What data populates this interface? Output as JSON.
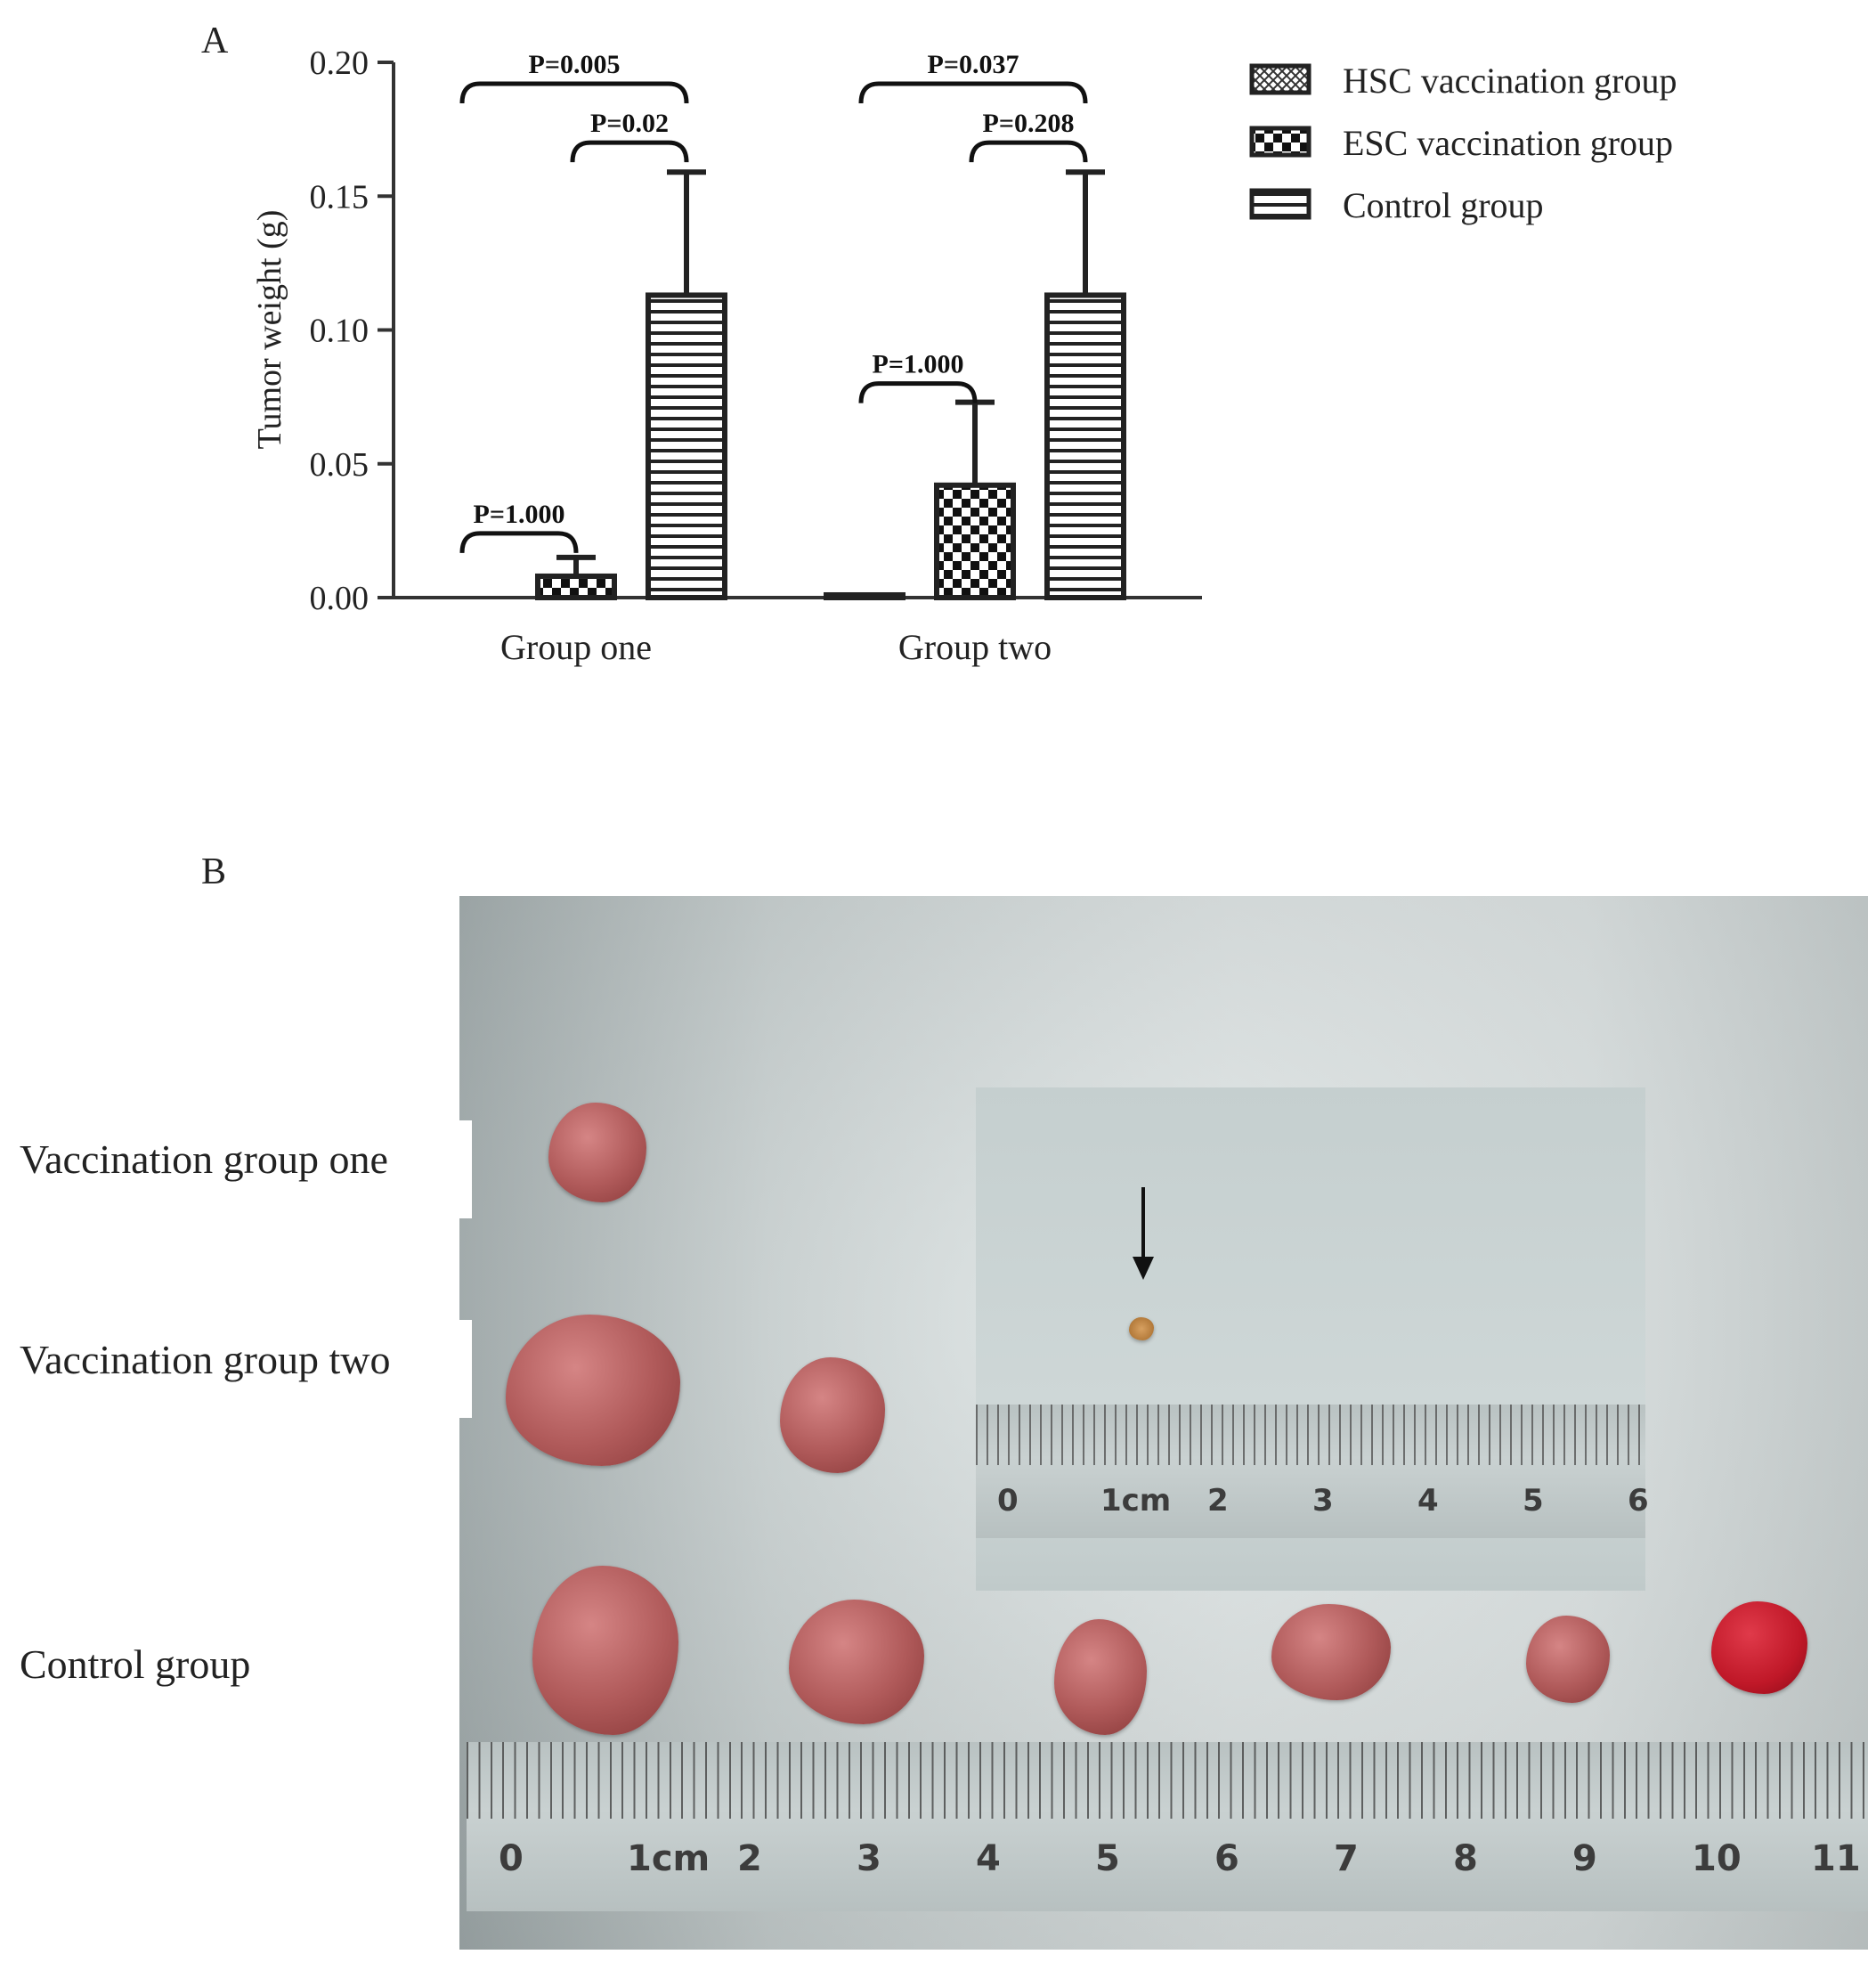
{
  "panel_a_letter": "A",
  "panel_b_letter": "B",
  "chart_data": {
    "type": "bar",
    "title": "",
    "xlabel": "",
    "ylabel": "Tumor weight (g)",
    "ylim": [
      0,
      0.2
    ],
    "yticks": [
      "0.00",
      "0.05",
      "0.10",
      "0.15",
      "0.20"
    ],
    "categories": [
      "Group one",
      "Group two"
    ],
    "series": [
      {
        "name": "HSC vaccination group",
        "values": [
          0.0,
          0.001
        ],
        "errors": [
          0.0,
          0.0
        ]
      },
      {
        "name": "ESC vaccination group",
        "values": [
          0.008,
          0.042
        ],
        "errors": [
          0.007,
          0.031
        ]
      },
      {
        "name": "Control group",
        "values": [
          0.113,
          0.113
        ],
        "errors": [
          0.046,
          0.046
        ]
      }
    ],
    "annotations": [
      {
        "group": 0,
        "from": 0,
        "to": 2,
        "text": "P=0.005",
        "y": 0.192
      },
      {
        "group": 0,
        "from": 1,
        "to": 2,
        "text": "P=0.02",
        "y": 0.17
      },
      {
        "group": 0,
        "from": 0,
        "to": 1,
        "text": "P=1.000",
        "y": 0.024
      },
      {
        "group": 1,
        "from": 0,
        "to": 2,
        "text": "P=0.037",
        "y": 0.192
      },
      {
        "group": 1,
        "from": 1,
        "to": 2,
        "text": "P=0.208",
        "y": 0.17
      },
      {
        "group": 1,
        "from": 0,
        "to": 1,
        "text": "P=1.000",
        "y": 0.08
      }
    ],
    "legend_position": "right",
    "grid": false
  },
  "photo": {
    "row_labels": [
      "Vaccination group one",
      "Vaccination group two",
      "Control group"
    ],
    "ruler_numbers": [
      "0",
      "1cm",
      "2",
      "3",
      "4",
      "5",
      "6",
      "7",
      "8",
      "9",
      "10",
      "11"
    ],
    "inset_ruler_numbers": [
      "0",
      "1cm",
      "2",
      "3",
      "4",
      "5",
      "6"
    ]
  }
}
